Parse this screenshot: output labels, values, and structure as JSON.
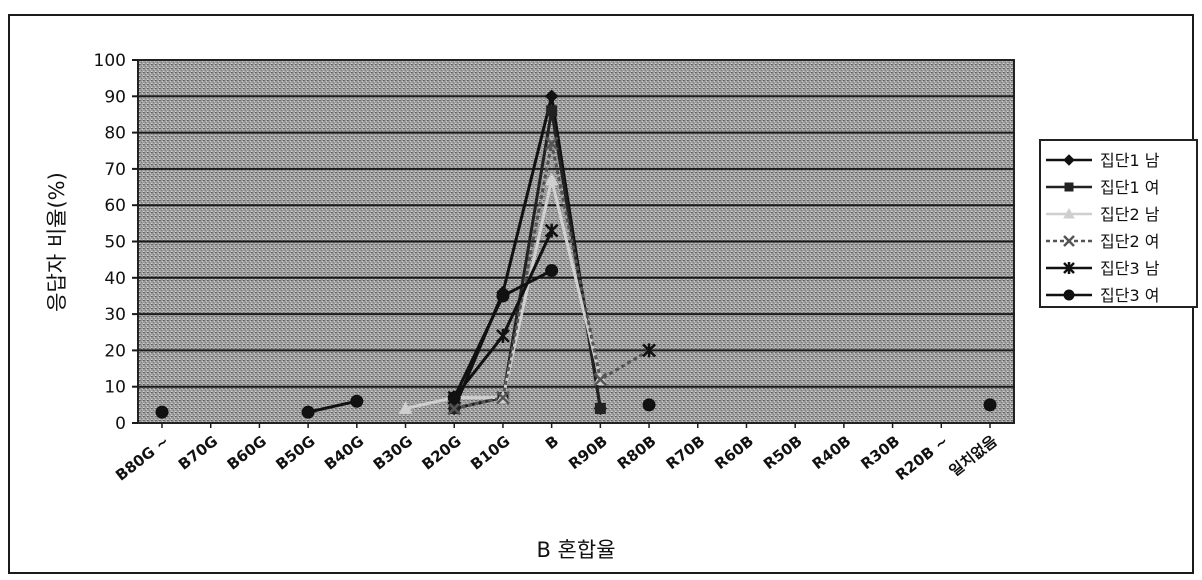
{
  "chart_data": {
    "type": "line",
    "title": "",
    "xlabel": "B 혼합율",
    "ylabel": "응답자 비율(%)",
    "ylim": [
      0,
      100
    ],
    "yticks": [
      0,
      10,
      20,
      30,
      40,
      50,
      60,
      70,
      80,
      90,
      100
    ],
    "grid": true,
    "legend_position": "right",
    "categories": [
      "B80G ~",
      "B70G",
      "B60G",
      "B50G",
      "B40G",
      "B30G",
      "B20G",
      "B10G",
      "B",
      "R90B",
      "R80B",
      "R70B",
      "R60B",
      "R50B",
      "R40B",
      "R30B",
      "R20B ~",
      "일치없음"
    ],
    "series": [
      {
        "name": "집단1 남",
        "color": "#111111",
        "marker": "diamond",
        "dash": "",
        "values": [
          null,
          null,
          null,
          null,
          null,
          null,
          4,
          36,
          90,
          4,
          null,
          null,
          null,
          null,
          null,
          null,
          null,
          null
        ]
      },
      {
        "name": "집단1 여",
        "color": "#222222",
        "marker": "square",
        "dash": "",
        "values": [
          null,
          null,
          null,
          null,
          null,
          null,
          4,
          7,
          86,
          4,
          null,
          null,
          null,
          null,
          null,
          null,
          null,
          null
        ]
      },
      {
        "name": "집단2 남",
        "color": "#cfcfcf",
        "marker": "triangle",
        "dash": "",
        "values": [
          null,
          null,
          null,
          null,
          null,
          4,
          7,
          7,
          67,
          12,
          null,
          null,
          null,
          null,
          null,
          null,
          null,
          null
        ]
      },
      {
        "name": "집단2 여",
        "color": "#555555",
        "marker": "x",
        "dash": "4 3",
        "values": [
          null,
          null,
          null,
          null,
          null,
          null,
          4,
          7,
          77,
          12,
          20,
          null,
          null,
          null,
          null,
          null,
          null,
          null
        ]
      },
      {
        "name": "집단3 남",
        "color": "#111111",
        "marker": "star",
        "dash": "",
        "values": [
          null,
          null,
          null,
          null,
          null,
          null,
          7,
          24,
          53,
          null,
          20,
          null,
          null,
          null,
          null,
          null,
          null,
          null
        ]
      },
      {
        "name": "집단3 여",
        "color": "#111111",
        "marker": "circle",
        "dash": "",
        "values": [
          3,
          null,
          null,
          3,
          6,
          null,
          7,
          35,
          42,
          null,
          5,
          null,
          null,
          null,
          null,
          null,
          null,
          5
        ]
      }
    ]
  }
}
